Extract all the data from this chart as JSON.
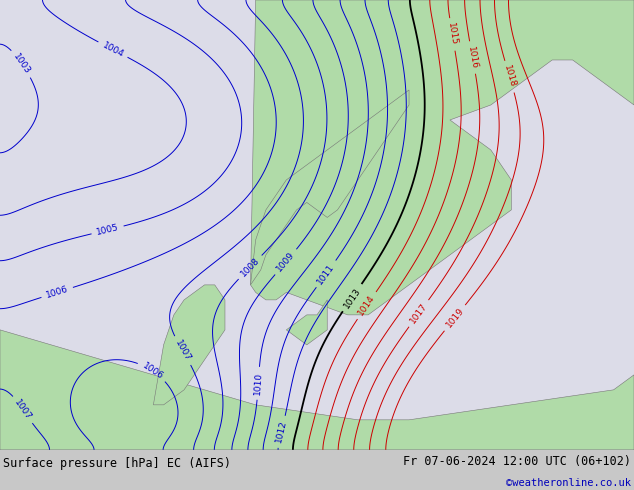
{
  "title_left": "Surface pressure [hPa] EC (AIFS)",
  "title_right": "Fr 07-06-2024 12:00 UTC (06+102)",
  "copyright": "©weatheronline.co.uk",
  "sea_color": "#dcdce8",
  "land_color": "#b0dba8",
  "blue_color": "#0000cc",
  "red_color": "#cc0000",
  "black_color": "#000000",
  "figsize": [
    6.34,
    4.9
  ],
  "dpi": 100,
  "bar_color": "#c8c8c8",
  "copyright_color": "#0000bb"
}
